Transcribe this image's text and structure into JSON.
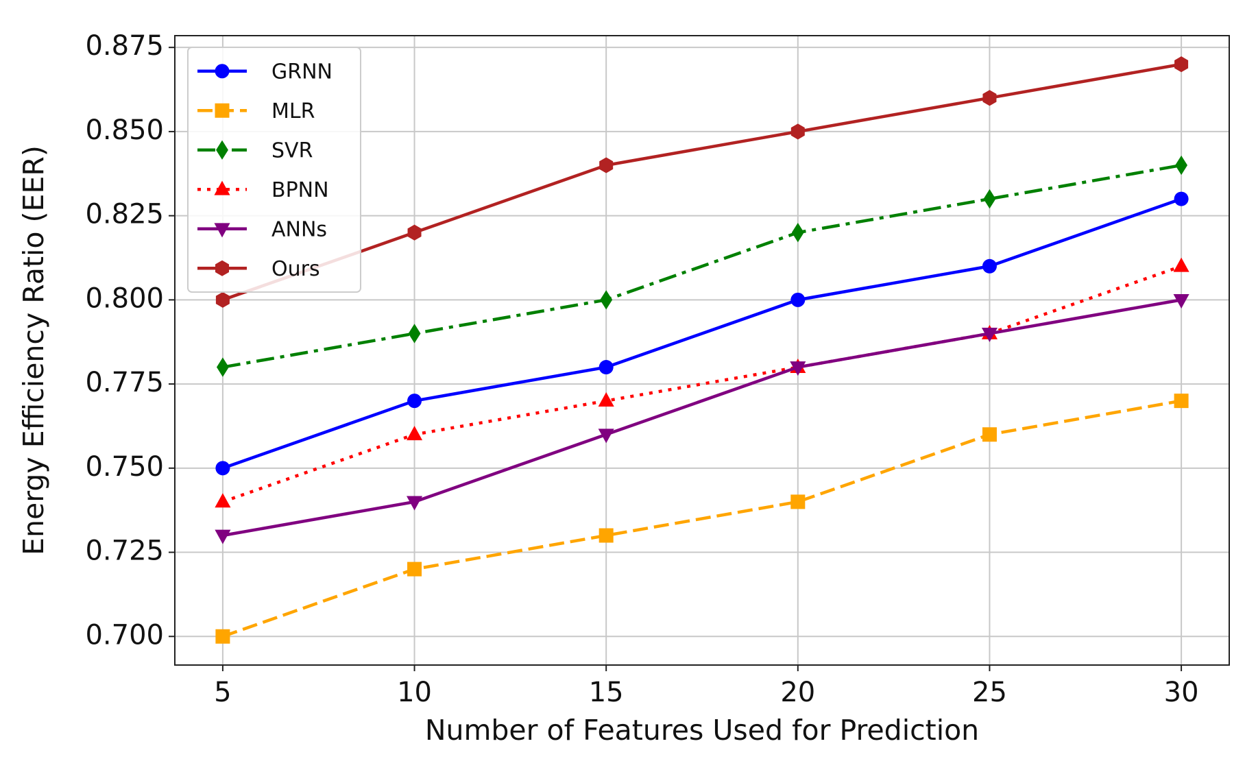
{
  "chart_data": {
    "type": "line",
    "x": [
      5,
      10,
      15,
      20,
      25,
      30
    ],
    "xlabel": "Number of Features Used for Prediction",
    "ylabel": "Energy Efficiency Ratio (EER)",
    "xlim": [
      3.75,
      31.25
    ],
    "ylim": [
      0.6915,
      0.8785
    ],
    "xticks": [
      5,
      10,
      15,
      20,
      25,
      30
    ],
    "yticks": [
      {
        "value": 0.7,
        "label": "0.700"
      },
      {
        "value": 0.725,
        "label": "0.725"
      },
      {
        "value": 0.75,
        "label": "0.750"
      },
      {
        "value": 0.775,
        "label": "0.775"
      },
      {
        "value": 0.8,
        "label": "0.800"
      },
      {
        "value": 0.825,
        "label": "0.825"
      },
      {
        "value": 0.85,
        "label": "0.850"
      },
      {
        "value": 0.875,
        "label": "0.875"
      }
    ],
    "grid": true,
    "legend": "upper left",
    "series": [
      {
        "name": "GRNN",
        "color": "#0000ff",
        "linestyle": "solid",
        "marker": "circle",
        "values": [
          0.75,
          0.77,
          0.78,
          0.8,
          0.81,
          0.83
        ]
      },
      {
        "name": "MLR",
        "color": "#ffa500",
        "linestyle": "dashed",
        "marker": "square",
        "values": [
          0.7,
          0.72,
          0.73,
          0.74,
          0.76,
          0.77
        ]
      },
      {
        "name": "SVR",
        "color": "#008000",
        "linestyle": "dashdot",
        "marker": "diamond",
        "values": [
          0.78,
          0.79,
          0.8,
          0.82,
          0.83,
          0.84
        ]
      },
      {
        "name": "BPNN",
        "color": "#ff0000",
        "linestyle": "dotted",
        "marker": "triangle-up",
        "values": [
          0.74,
          0.76,
          0.77,
          0.78,
          0.79,
          0.81
        ]
      },
      {
        "name": "ANNs",
        "color": "#800080",
        "linestyle": "solid",
        "marker": "triangle-down",
        "values": [
          0.73,
          0.74,
          0.76,
          0.78,
          0.79,
          0.8
        ]
      },
      {
        "name": "Ours",
        "color": "#b22222",
        "linestyle": "solid",
        "marker": "hexagon",
        "values": [
          0.8,
          0.82,
          0.84,
          0.85,
          0.86,
          0.87
        ]
      }
    ]
  }
}
